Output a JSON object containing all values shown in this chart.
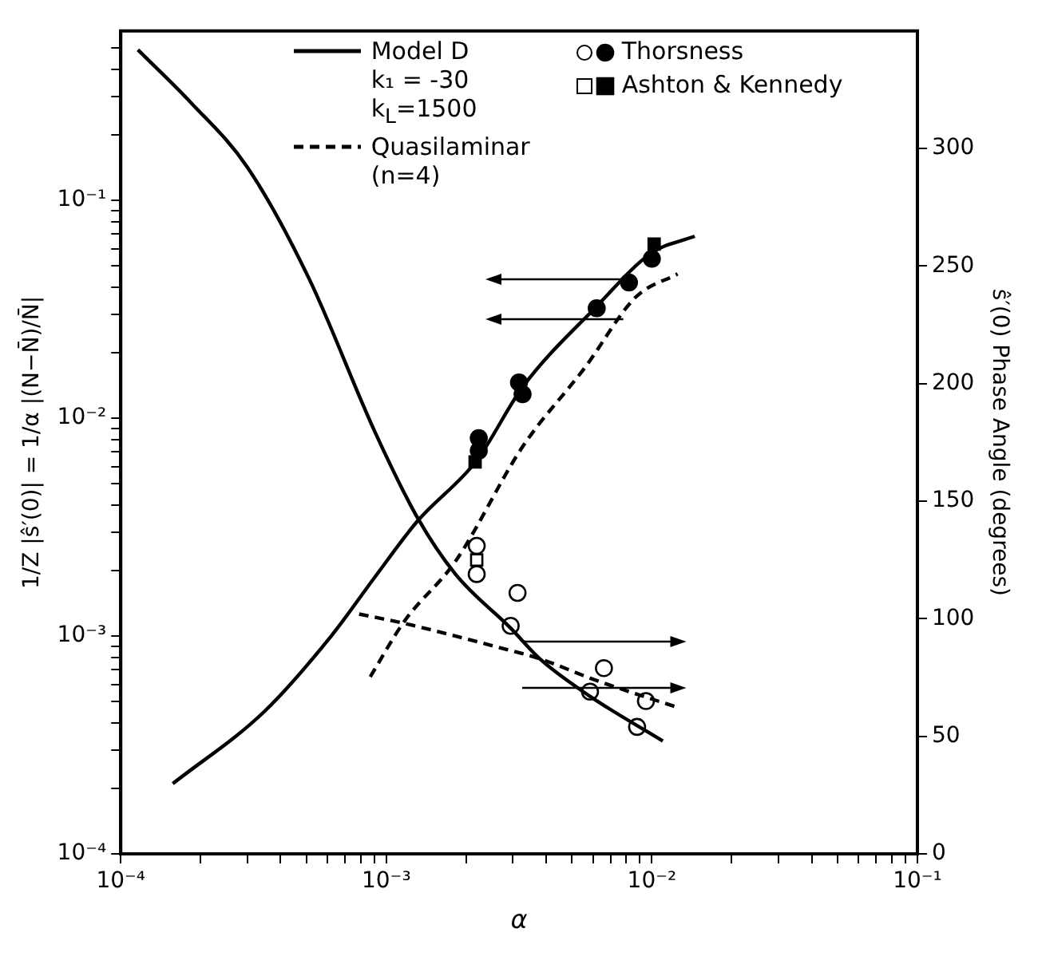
{
  "chart_data": {
    "type": "line",
    "xlabel": "α",
    "ylabel": "1/Z |ŝ′(0)| = 1/α |(N−N̄)/N̄|",
    "y2label": "ŝ′(0) Phase Angle (degrees)",
    "annotations": [
      "k₁ = -30",
      "k$_{L}$=1500"
    ],
    "log": "xy",
    "legend": "top",
    "marker": "none",
    "xlim": [
      0.0001,
      0.1
    ],
    "xticks": [
      {
        "value": 0.0001,
        "label": "10⁻⁴"
      },
      {
        "value": 0.0002,
        "label": null
      },
      {
        "value": 0.0003,
        "label": null
      },
      {
        "value": 0.0004,
        "label": null
      },
      {
        "value": 0.0005,
        "label": null
      },
      {
        "value": 0.0006,
        "label": null
      },
      {
        "value": 0.0007,
        "label": null
      },
      {
        "value": 0.0008,
        "label": null
      },
      {
        "value": 0.0009,
        "label": null
      },
      {
        "value": 0.001,
        "label": "10⁻³"
      },
      {
        "value": 0.002,
        "label": null
      },
      {
        "value": 0.003,
        "label": null
      },
      {
        "value": 0.004,
        "label": null
      },
      {
        "value": 0.005,
        "label": null
      },
      {
        "value": 0.006,
        "label": null
      },
      {
        "value": 0.007,
        "label": null
      },
      {
        "value": 0.008,
        "label": null
      },
      {
        "value": 0.009,
        "label": null
      },
      {
        "value": 0.01,
        "label": "10⁻²"
      },
      {
        "value": 0.02,
        "label": null
      },
      {
        "value": 0.03,
        "label": null
      },
      {
        "value": 0.04,
        "label": null
      },
      {
        "value": 0.05,
        "label": null
      },
      {
        "value": 0.06,
        "label": null
      },
      {
        "value": 0.07,
        "label": null
      },
      {
        "value": 0.08,
        "label": null
      },
      {
        "value": 0.09,
        "label": null
      },
      {
        "value": 0.1,
        "label": "10⁻¹"
      }
    ],
    "ylim": [
      0.0001,
      0.6
    ],
    "yticks": [
      {
        "value": 0.0001,
        "label": "10⁻⁴"
      },
      {
        "value": 0.0002,
        "label": null
      },
      {
        "value": 0.0003,
        "label": null
      },
      {
        "value": 0.0004,
        "label": null
      },
      {
        "value": 0.0005,
        "label": null
      },
      {
        "value": 0.0006,
        "label": null
      },
      {
        "value": 0.0007,
        "label": null
      },
      {
        "value": 0.0008,
        "label": null
      },
      {
        "value": 0.0009,
        "label": null
      },
      {
        "value": 0.001,
        "label": "10⁻³"
      },
      {
        "value": 0.002,
        "label": null
      },
      {
        "value": 0.003,
        "label": null
      },
      {
        "value": 0.004,
        "label": null
      },
      {
        "value": 0.005,
        "label": null
      },
      {
        "value": 0.006,
        "label": null
      },
      {
        "value": 0.007,
        "label": null
      },
      {
        "value": 0.008,
        "label": null
      },
      {
        "value": 0.009,
        "label": null
      },
      {
        "value": 0.01,
        "label": "10⁻²"
      },
      {
        "value": 0.02,
        "label": null
      },
      {
        "value": 0.03,
        "label": null
      },
      {
        "value": 0.04,
        "label": null
      },
      {
        "value": 0.05,
        "label": null
      },
      {
        "value": 0.06,
        "label": null
      },
      {
        "value": 0.07,
        "label": null
      },
      {
        "value": 0.08,
        "label": null
      },
      {
        "value": 0.09,
        "label": null
      },
      {
        "value": 0.1,
        "label": "10⁻¹"
      },
      {
        "value": 0.2,
        "label": null
      },
      {
        "value": 0.3,
        "label": null
      },
      {
        "value": 0.4,
        "label": null
      },
      {
        "value": 0.5,
        "label": null
      }
    ],
    "y2lim": [
      0,
      350
    ],
    "y2ticks": [
      0,
      50,
      100,
      150,
      200,
      250,
      300
    ],
    "series": [
      {
        "name": "Model D",
        "line_style": "solid",
        "color": "#000000",
        "x": [
          0.000157,
          0.000347,
          0.00062,
          0.00091,
          0.00131,
          0.00219,
          0.00326,
          0.0061,
          0.01,
          0.0145
        ],
        "values": [
          0.00021,
          0.00045,
          0.001,
          0.00188,
          0.00337,
          0.0064,
          0.0139,
          0.032,
          0.0575,
          0.0685
        ]
      },
      {
        "line_style": "solid",
        "axis": "y2",
        "color": "#000000",
        "x": [
          0.000116,
          0.000182,
          0.0003,
          0.00051,
          0.00091,
          0.00131,
          0.00182,
          0.00294,
          0.00378,
          0.00585,
          0.011
        ],
        "values": [
          342,
          320,
          292,
          245,
          179,
          143,
          119,
          96,
          83,
          67,
          48
        ]
      },
      {
        "name": "Quasilaminar (n=4)",
        "line_style": "dashed",
        "color": "#000000",
        "x": [
          0.00087,
          0.00117,
          0.00182,
          0.00326,
          0.0056,
          0.0087,
          0.0125
        ],
        "values": [
          0.00065,
          0.00117,
          0.0022,
          0.0074,
          0.0171,
          0.036,
          0.046
        ]
      },
      {
        "line_style": "dashed",
        "axis": "y2",
        "color": "#000000",
        "x": [
          0.00079,
          0.00117,
          0.00282,
          0.00378,
          0.0061,
          0.0127
        ],
        "values": [
          102,
          98,
          87,
          83,
          74,
          62
        ]
      },
      {
        "name": "Thorsness",
        "type": "scatter",
        "marker": "circle",
        "color": "#000000",
        "x": [
          0.00223,
          0.00223,
          0.00316,
          0.00326,
          0.0062,
          0.0082,
          0.01
        ],
        "values": [
          0.0081,
          0.0071,
          0.0146,
          0.0129,
          0.032,
          0.042,
          0.054
        ]
      },
      {
        "type": "scatter",
        "marker": "circle",
        "axis": "y2",
        "color": "#ffffff",
        "x": [
          0.00219,
          0.00219,
          0.00312,
          0.00294,
          0.0066,
          0.00585,
          0.0095,
          0.0088
        ],
        "values": [
          131,
          119,
          111,
          97,
          79,
          69,
          65,
          54
        ]
      },
      {
        "name": "Ashton & Kennedy",
        "type": "scatter",
        "marker": "square",
        "color": "#000000",
        "x": [
          0.00216,
          0.0102
        ],
        "values": [
          0.0063,
          0.063
        ]
      },
      {
        "type": "scatter",
        "marker": "square",
        "axis": "y2",
        "color": "#ffffff",
        "x": [
          0.00219
        ],
        "values": [
          125
        ]
      }
    ]
  }
}
